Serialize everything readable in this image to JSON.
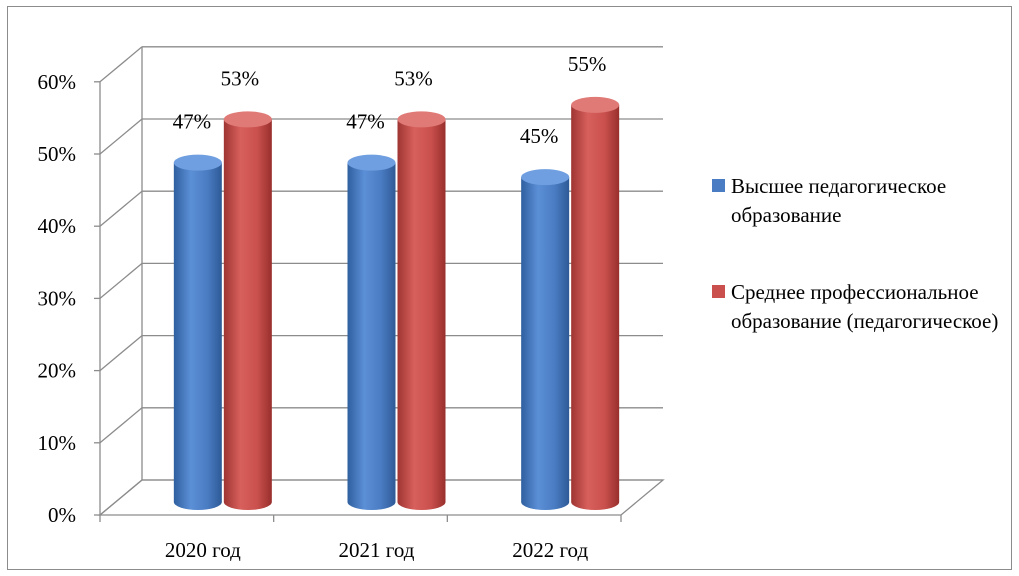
{
  "chart_data": {
    "type": "bar",
    "categories": [
      "2020 год",
      "2021 год",
      "2022 год"
    ],
    "series": [
      {
        "name": "Высшее педагогическое образование",
        "values": [
          47,
          47,
          45
        ],
        "labels": [
          "47%",
          "47%",
          "45%"
        ],
        "color": "#4a7cc3"
      },
      {
        "name": "Среднее профессиональное образование (педагогическое)",
        "values": [
          53,
          53,
          55
        ],
        "labels": [
          "53%",
          "53%",
          "55%"
        ],
        "color": "#c9504d"
      }
    ],
    "yticks": [
      "0%",
      "10%",
      "20%",
      "30%",
      "40%",
      "50%",
      "60%"
    ],
    "ylim": [
      0,
      60
    ],
    "grid": true,
    "legend_position": "right",
    "style": "3d-cylinder"
  }
}
